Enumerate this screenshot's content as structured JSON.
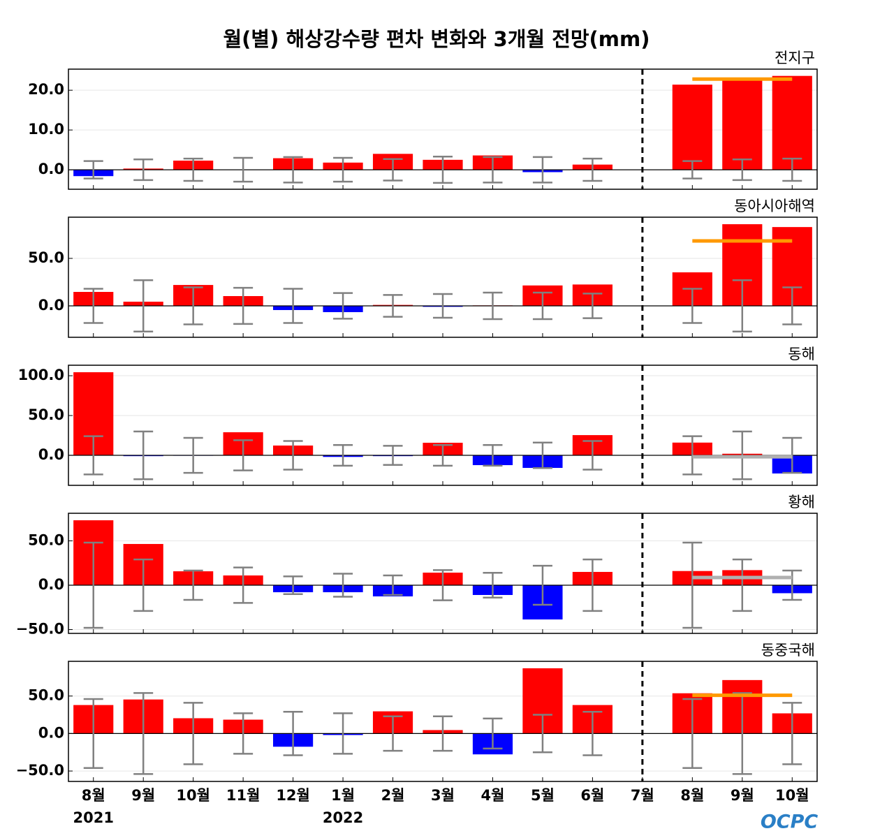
{
  "title": "월(별) 해상강수량 편차 변화와 3개월 전망(mm)",
  "categories": [
    "8월",
    "9월",
    "10월",
    "11월",
    "12월",
    "1월",
    "2월",
    "3월",
    "4월",
    "5월",
    "6월",
    "7월",
    "8월",
    "9월",
    "10월"
  ],
  "years": [
    "2021",
    null,
    null,
    null,
    null,
    "2022",
    null,
    null,
    null,
    null,
    null,
    null,
    null,
    null,
    null
  ],
  "logo": "OCPC",
  "chart_data": [
    {
      "type": "bar",
      "title": "전지구",
      "color_positive": "#ff0000",
      "color_negative": "#0000ff",
      "error_color": "#808080",
      "values": [
        -1.6,
        0.3,
        2.3,
        0,
        2.9,
        1.8,
        4.0,
        2.5,
        3.6,
        -0.6,
        1.3,
        0,
        21.4,
        23.0,
        23.6
      ],
      "errors": [
        2.2,
        2.6,
        2.8,
        3.0,
        3.2,
        3.0,
        2.7,
        3.3,
        3.2,
        3.2,
        2.8,
        null,
        2.2,
        2.6,
        2.8
      ],
      "forecast": {
        "value": 22.8,
        "color": "#ff9900"
      },
      "ylim": [
        -4.9,
        25.3
      ],
      "yticks": [
        {
          "value": 0,
          "label": "0.0"
        },
        {
          "value": 10,
          "label": "10.0"
        },
        {
          "value": 20,
          "label": "20.0"
        }
      ],
      "grid": true
    },
    {
      "type": "bar",
      "title": "동아시아해역",
      "color_positive": "#ff0000",
      "color_negative": "#0000ff",
      "error_color": "#808080",
      "values": [
        14.7,
        4.4,
        22,
        10.3,
        -4.4,
        -6.6,
        1,
        -1,
        0.5,
        21.5,
        22.5,
        0,
        35.3,
        86,
        83
      ],
      "errors": [
        18,
        27,
        19.5,
        19,
        18,
        13.5,
        11.5,
        12.5,
        14,
        14,
        13,
        null,
        18,
        27,
        19.5
      ],
      "forecast": {
        "value": 68.4,
        "color": "#ff9900"
      },
      "ylim": [
        -33.1,
        93.4
      ],
      "yticks": [
        {
          "value": 0,
          "label": "0.0"
        },
        {
          "value": 50,
          "label": "50.0"
        }
      ],
      "grid": true
    },
    {
      "type": "bar",
      "title": "동해",
      "color_positive": "#ff0000",
      "color_negative": "#0000ff",
      "error_color": "#808080",
      "values": [
        104.4,
        -1,
        -0.5,
        29,
        12.3,
        -2,
        -1,
        15.8,
        -12.3,
        -15.8,
        25.4,
        0,
        16,
        2,
        -22.8
      ],
      "errors": [
        24,
        30,
        22,
        19,
        18,
        13,
        12,
        13,
        13,
        16,
        18,
        null,
        24,
        30,
        22
      ],
      "forecast": {
        "value": -1.8,
        "color": "#b0b0b0"
      },
      "ylim": [
        -37.7,
        113.2
      ],
      "yticks": [
        {
          "value": 0,
          "label": "0.0"
        },
        {
          "value": 50,
          "label": "50.0"
        },
        {
          "value": 100,
          "label": "100.0"
        }
      ],
      "grid": true
    },
    {
      "type": "bar",
      "title": "황해",
      "color_positive": "#ff0000",
      "color_negative": "#0000ff",
      "error_color": "#808080",
      "values": [
        73.2,
        46.5,
        15.7,
        11,
        -7.9,
        -7.9,
        -12.6,
        14.2,
        -11,
        -38.6,
        15,
        0,
        16,
        17,
        -9
      ],
      "errors": [
        48,
        29,
        16.5,
        20,
        10,
        13,
        11,
        17,
        14,
        22,
        29,
        null,
        48,
        29,
        16.5
      ],
      "forecast": {
        "value": 8.7,
        "color": "#b0b0b0"
      },
      "ylim": [
        -54.3,
        81.1
      ],
      "yticks": [
        {
          "value": -50,
          "label": "−50.0"
        },
        {
          "value": 0,
          "label": "0.0"
        },
        {
          "value": 50,
          "label": "50.0"
        }
      ],
      "grid": true
    },
    {
      "type": "bar",
      "title": "동중국해",
      "color_positive": "#ff0000",
      "color_negative": "#0000ff",
      "error_color": "#808080",
      "values": [
        38,
        45.4,
        20.4,
        18.5,
        -17.6,
        -2,
        29.6,
        4.6,
        -27.8,
        87,
        38,
        0,
        53.7,
        71.3,
        26.9
      ],
      "errors": [
        46,
        54,
        41,
        27,
        29,
        27,
        23,
        23,
        20,
        25,
        29,
        null,
        46,
        54,
        41
      ],
      "forecast": {
        "value": 51,
        "color": "#ff9900"
      },
      "ylim": [
        -63.9,
        96.3
      ],
      "yticks": [
        {
          "value": -50,
          "label": "−50.0"
        },
        {
          "value": 0,
          "label": "0.0"
        },
        {
          "value": 50,
          "label": "50.0"
        }
      ],
      "grid": true
    }
  ]
}
